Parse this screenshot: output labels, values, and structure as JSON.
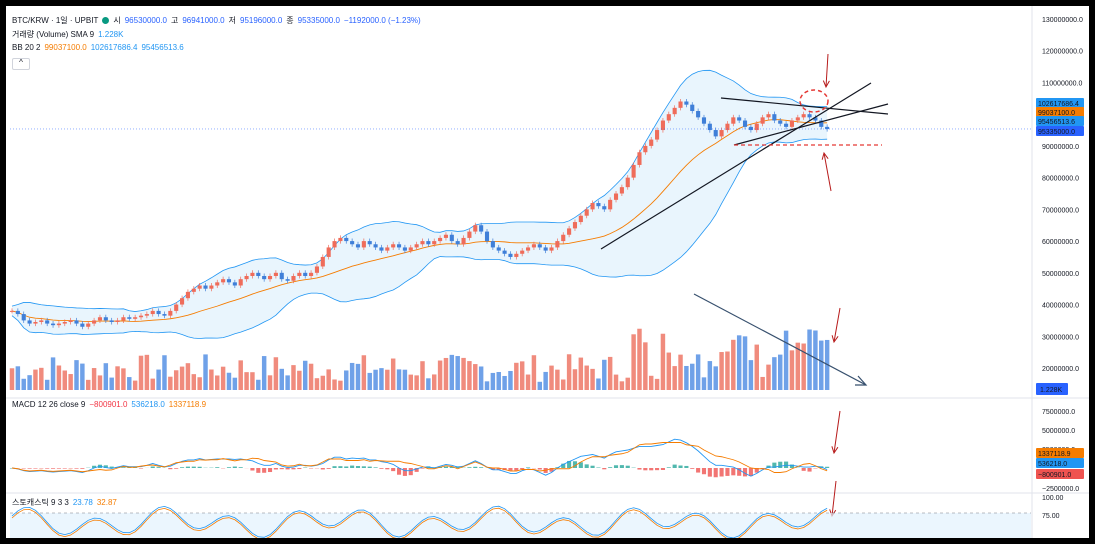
{
  "header": {
    "symbol": "BTC/KRW · 1일 · UPBIT",
    "ohlc": [
      {
        "label": "시",
        "value": "96530000.0"
      },
      {
        "label": "고",
        "value": "96941000.0"
      },
      {
        "label": "저",
        "value": "95196000.0"
      },
      {
        "label": "종",
        "value": "95335000.0"
      }
    ],
    "change": "−1192000.0 (−1.23%)"
  },
  "indicators": {
    "volume": {
      "label": "거래량 (Volume) SMA 9",
      "value": "1.228K"
    },
    "bb": {
      "label": "BB 20 2",
      "basis": "99037100.0",
      "upper": "102617686.4",
      "lower": "95456513.6"
    },
    "macd": {
      "label": "MACD 12 26 close 9",
      "hist": "−800901.0",
      "macd": "536218.0",
      "signal": "1337118.9"
    },
    "stoch": {
      "label": "스토캐스틱 9 3 3",
      "k": "23.78",
      "d": "32.87"
    }
  },
  "collapse_icon": "^",
  "colors": {
    "up": "#f08b7d",
    "down": "#6fa1e8",
    "bb_band": "#2196f3",
    "bb_fill": "#e3f2fd",
    "basis": "#f57c00",
    "macd": "#2196f3",
    "signal": "#f57c00",
    "hist_pos": "#26a69a",
    "hist_neg": "#ef5350",
    "annot_arrow": "#b71c1c",
    "trend": "#131722",
    "dash_red": "#e53935"
  },
  "price_axis": {
    "ticks": [
      "130000000.0",
      "120000000.0",
      "110000000.0",
      "100000000.0",
      "90000000.0",
      "80000000.0",
      "70000000.0",
      "60000000.0",
      "50000000.0",
      "40000000.0",
      "30000000.0",
      "20000000.0"
    ],
    "badges": [
      {
        "text": "102617686.4",
        "color": "#2196f3"
      },
      {
        "text": "99037100.0",
        "color": "#f57c00"
      },
      {
        "text": "95456513.6",
        "color": "#2196f3"
      },
      {
        "text": "95335000.0",
        "color": "#2962ff"
      }
    ],
    "volume_badge": "1.228K"
  },
  "macd_axis": {
    "ticks": [
      "7500000.0",
      "5000000.0",
      "2500000.0",
      "−2500000.0"
    ],
    "badges": [
      {
        "text": "1337118.9",
        "color": "#f57c00"
      },
      {
        "text": "536218.0",
        "color": "#2196f3"
      },
      {
        "text": "−800901.0",
        "color": "#ef5350"
      }
    ]
  },
  "stoch_axis": {
    "ticks": [
      "100.00",
      "75.00"
    ]
  },
  "chart_data": {
    "type": "candlestick",
    "panes": [
      "price+bollinger",
      "volume",
      "macd",
      "stochastic"
    ],
    "price_closes": [
      38,
      37,
      35,
      34,
      34.5,
      35,
      34,
      33.5,
      34,
      34.5,
      35,
      34,
      33,
      34,
      35,
      36,
      35,
      34.5,
      35,
      36,
      35.5,
      36,
      36.5,
      37,
      38,
      37,
      36.5,
      38,
      40,
      42,
      44,
      45,
      46,
      45,
      46,
      47,
      48,
      47,
      46,
      48,
      49,
      50,
      49,
      48,
      49,
      50,
      48,
      47.5,
      49,
      50,
      49,
      50,
      52,
      55,
      58,
      60,
      61,
      60,
      59,
      58,
      60,
      59,
      58,
      57,
      58,
      59,
      58,
      57,
      58,
      59,
      60,
      59,
      60,
      61,
      62,
      60,
      59,
      61,
      63,
      65,
      63,
      60,
      58,
      57,
      56,
      55,
      56,
      57,
      58,
      59,
      58,
      57,
      58,
      60,
      62,
      64,
      66,
      68,
      70,
      72,
      71,
      70,
      73,
      75,
      77,
      80,
      84,
      88,
      90,
      92,
      95,
      98,
      100,
      102,
      104,
      103,
      101,
      99,
      97,
      95,
      93,
      95,
      97,
      99,
      98,
      96,
      95,
      97,
      99,
      100,
      98,
      97,
      96,
      98,
      99,
      100,
      99,
      98,
      96,
      95.3
    ],
    "volume_pattern": "varying",
    "macd_hist": [
      0.1,
      0.2,
      0.3,
      0.2,
      0.1,
      0,
      -0.2,
      -0.3,
      -0.2,
      0.1,
      0.3,
      0.5,
      0.4,
      0.3,
      0.2,
      0.1,
      0.2,
      0.3,
      0.4,
      0.3,
      0.1,
      -0.1,
      -0.2,
      0.1,
      0.2,
      0.6,
      0.8,
      1,
      0.9,
      0.7,
      0.5,
      0.3,
      -0.2,
      -0.5,
      -0.8,
      -1,
      -1.2,
      -0.9,
      -0.6,
      -0.3,
      0.2,
      0.5,
      0.6,
      0.4,
      0.2,
      -0.1,
      -0.3,
      -0.5,
      -0.8
    ]
  }
}
